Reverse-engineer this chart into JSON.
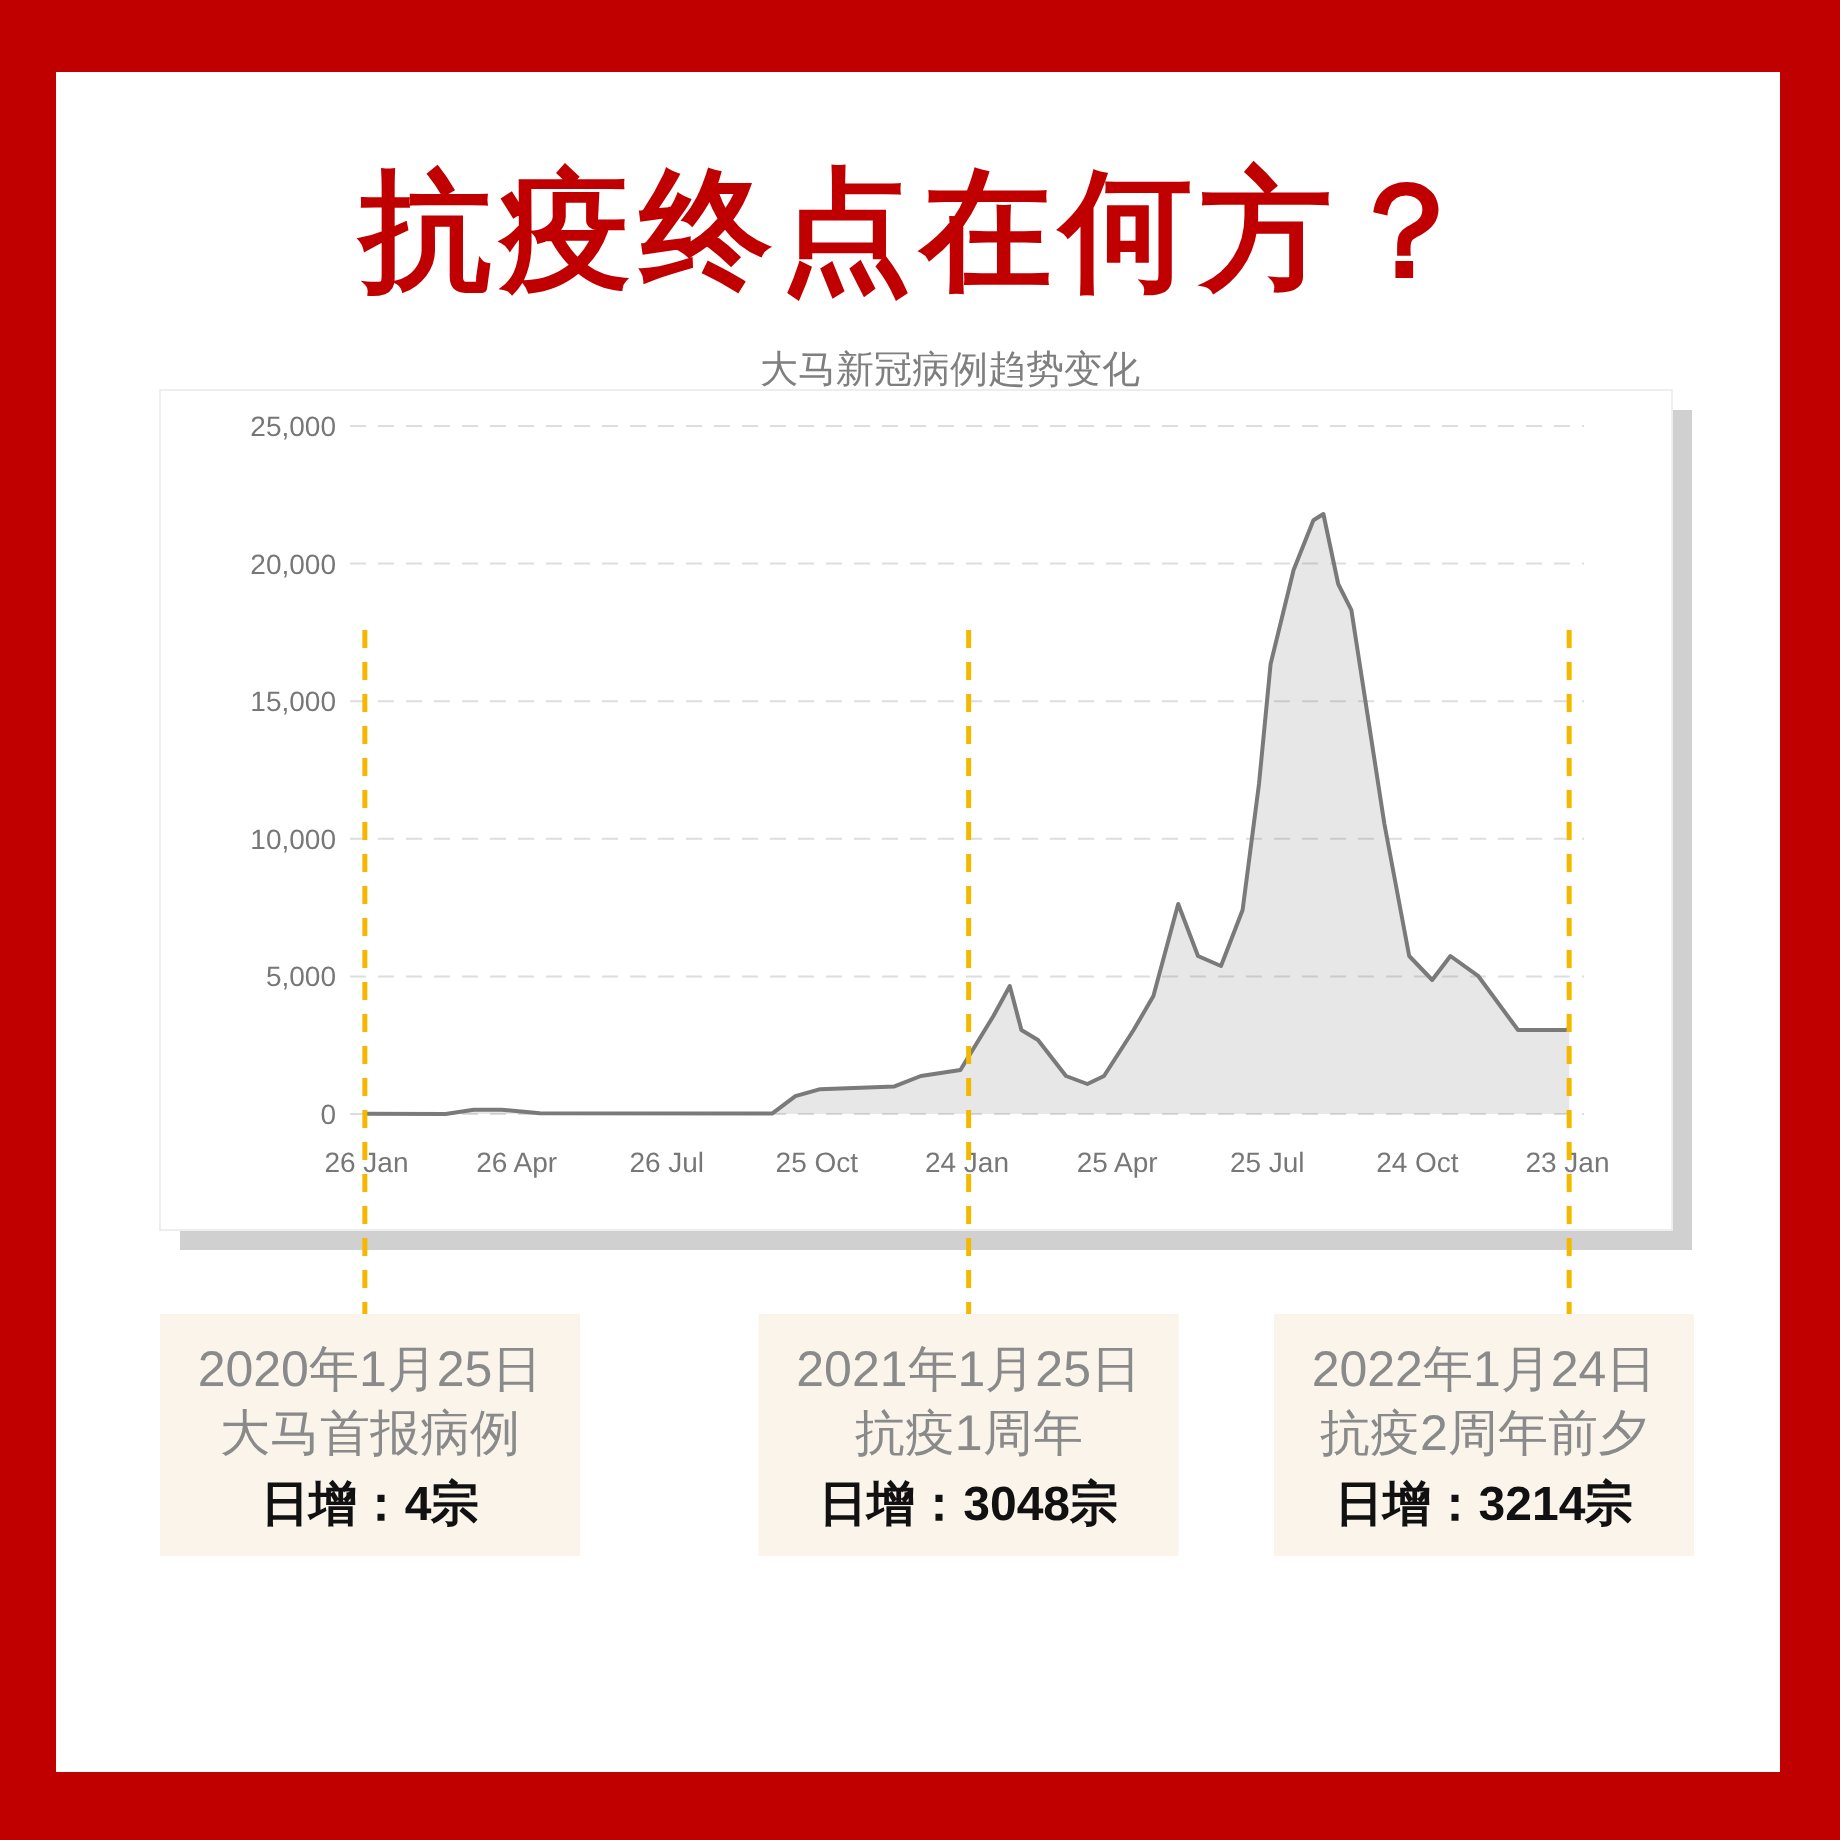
{
  "chart_data": {
    "type": "area",
    "title": "抗疫终点在何方？",
    "subtitle": "大马新冠病例趋势变化",
    "x": [
      "2020-01-25",
      "2020-03-14",
      "2020-03-31",
      "2020-04-17",
      "2020-05-10",
      "2020-09-28",
      "2020-10-12",
      "2020-10-27",
      "2020-12-11",
      "2020-12-27",
      "2021-01-20",
      "2021-02-09",
      "2021-02-19",
      "2021-02-26",
      "2021-03-08",
      "2021-03-25",
      "2021-04-07",
      "2021-04-17",
      "2021-05-05",
      "2021-05-17",
      "2021-06-01",
      "2021-06-13",
      "2021-06-27",
      "2021-07-10",
      "2021-07-20",
      "2021-07-27",
      "2021-08-10",
      "2021-08-22",
      "2021-08-28",
      "2021-09-06",
      "2021-09-14",
      "2021-10-04",
      "2021-10-19",
      "2021-11-02",
      "2021-11-13",
      "2021-11-30",
      "2021-12-24",
      "2022-01-22",
      "2022-01-24"
    ],
    "series": [
      {
        "color": "#7a7a7a",
        "values": [
          4,
          0,
          150,
          150,
          30,
          20,
          650,
          900,
          1000,
          1380,
          1600,
          3560,
          4650,
          3050,
          2690,
          1380,
          1090,
          1380,
          3050,
          4290,
          7630,
          5740,
          5380,
          7410,
          11990,
          16350,
          19770,
          21580,
          21800,
          19260,
          18310,
          10540,
          5740,
          4870,
          5740,
          5010,
          3050,
          3050,
          3100
        ]
      }
    ],
    "xlim": [
      "2020-01-16",
      "2022-02-02"
    ],
    "xticks": [
      {
        "value": "2020-01-26",
        "label": "26 Jan"
      },
      {
        "value": "2020-04-26",
        "label": "26 Apr"
      },
      {
        "value": "2020-07-26",
        "label": "26 Jul"
      },
      {
        "value": "2020-10-25",
        "label": "25 Oct"
      },
      {
        "value": "2021-01-24",
        "label": "24 Jan"
      },
      {
        "value": "2021-04-25",
        "label": "25 Apr"
      },
      {
        "value": "2021-07-25",
        "label": "25 Jul"
      },
      {
        "value": "2021-10-24",
        "label": "24 Oct"
      },
      {
        "value": "2022-01-23",
        "label": "23 Jan"
      }
    ],
    "ylim": [
      0,
      25000
    ],
    "yticks": [
      {
        "value": 0,
        "label": "0"
      },
      {
        "value": 5000,
        "label": "5,000"
      },
      {
        "value": 10000,
        "label": "10,000"
      },
      {
        "value": 15000,
        "label": "15,000"
      },
      {
        "value": 20000,
        "label": "20,000"
      },
      {
        "value": 25000,
        "label": "25,000"
      }
    ],
    "grid": "y",
    "ref_lines": [
      {
        "axis": "x",
        "value": "2020-01-25",
        "label": "2020年1月25日大马首报病例",
        "color": "#f5b800",
        "line_style": "dashed"
      },
      {
        "axis": "x",
        "value": "2021-01-25",
        "label": "2021年1月25日抗疫1周年",
        "color": "#f5b800",
        "line_style": "dashed"
      },
      {
        "axis": "x",
        "value": "2022-01-24",
        "label": "2022年1月24日抗疫2周年前夕",
        "color": "#f5b800",
        "line_style": "dashed"
      }
    ],
    "annotations": [
      "日增：4宗",
      "日增：3048宗",
      "日增：3214宗"
    ]
  }
}
